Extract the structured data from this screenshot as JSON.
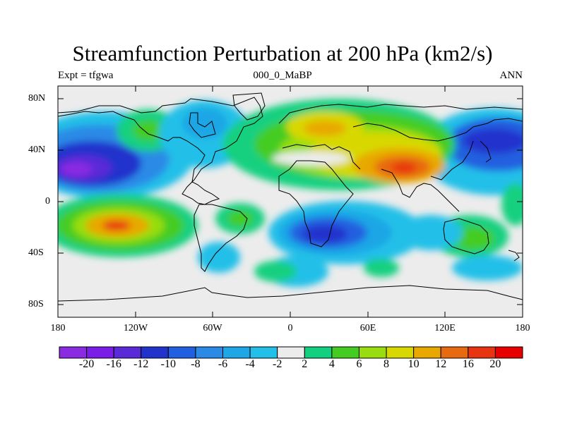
{
  "figure": {
    "title": "Streamfunction Perturbation at 200 hPa (km2/s)",
    "left_label": "Expt = tfgwa",
    "center_label": "000_0_MaBP",
    "right_label": "ANN"
  },
  "axes": {
    "y_ticks": [
      "80N",
      "40N",
      "0",
      "40S",
      "80S"
    ],
    "x_ticks": [
      "180",
      "120W",
      "60W",
      "0",
      "60E",
      "120E",
      "180"
    ]
  },
  "colorbar": {
    "labels": [
      "-20",
      "-16",
      "-12",
      "-10",
      "-8",
      "-6",
      "-4",
      "-2",
      "2",
      "4",
      "6",
      "8",
      "10",
      "12",
      "16",
      "20"
    ],
    "colors": [
      "#8a2be2",
      "#7a1de6",
      "#5a2ad8",
      "#2233cc",
      "#2060e0",
      "#2a8ae6",
      "#1ea6e6",
      "#22c0e8",
      "#ececec",
      "#12d080",
      "#44cc22",
      "#99dd11",
      "#d8d800",
      "#e8a800",
      "#e86a10",
      "#e83410",
      "#e60000"
    ]
  },
  "map_data": {
    "type": "filled-contour",
    "projection": "cylindrical-equidistant",
    "lon_range": [
      -180,
      180
    ],
    "lat_range": [
      -90,
      90
    ],
    "variable": "streamfunction perturbation",
    "level": "200 hPa",
    "units": "km2/s",
    "features": [
      {
        "name": "north-pacific-low",
        "lon": -150,
        "lat": 25,
        "value": -20
      },
      {
        "name": "north-pacific-low-east",
        "lon": 150,
        "lat": 45,
        "value": -14
      },
      {
        "name": "south-pacific-high",
        "lon": -135,
        "lat": -20,
        "value": 16
      },
      {
        "name": "tibetan-high",
        "lon": 90,
        "lat": 27,
        "value": 18
      },
      {
        "name": "european-high",
        "lon": 45,
        "lat": 55,
        "value": 12
      },
      {
        "name": "south-indian-low",
        "lon": 35,
        "lat": -30,
        "value": -12
      },
      {
        "name": "south-america-high",
        "lon": -35,
        "lat": -15,
        "value": 6
      },
      {
        "name": "southern-ocean-high",
        "lon": -20,
        "lat": -55,
        "value": 4
      }
    ]
  }
}
